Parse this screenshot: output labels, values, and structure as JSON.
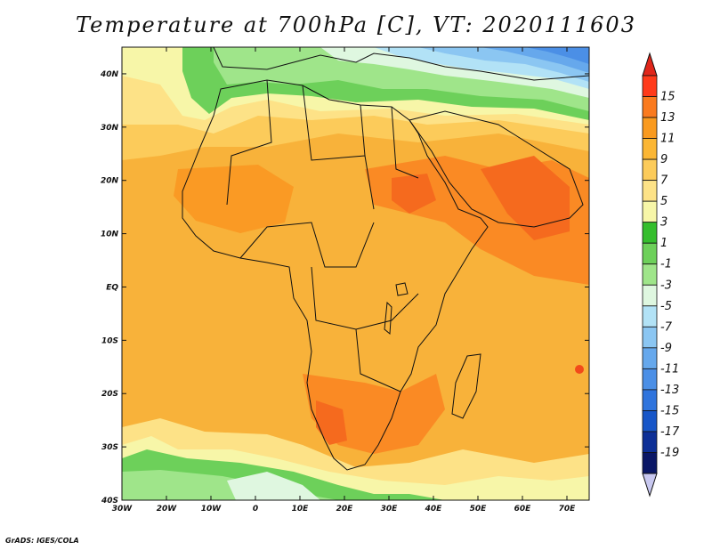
{
  "title": "Temperature at 700hPa [C], VT: 2020111603",
  "credit": "GrADS: IGES/COLA",
  "map": {
    "lon_range": [
      -30,
      75
    ],
    "lat_range": [
      -40,
      45
    ],
    "lon_ticks": [
      {
        "value": -30,
        "label": "30W"
      },
      {
        "value": -20,
        "label": "20W"
      },
      {
        "value": -10,
        "label": "10W"
      },
      {
        "value": 0,
        "label": "0"
      },
      {
        "value": 10,
        "label": "10E"
      },
      {
        "value": 20,
        "label": "20E"
      },
      {
        "value": 30,
        "label": "30E"
      },
      {
        "value": 40,
        "label": "40E"
      },
      {
        "value": 50,
        "label": "50E"
      },
      {
        "value": 60,
        "label": "60E"
      },
      {
        "value": 70,
        "label": "70E"
      }
    ],
    "lat_ticks": [
      {
        "value": 40,
        "label": "40N"
      },
      {
        "value": 30,
        "label": "30N"
      },
      {
        "value": 20,
        "label": "20N"
      },
      {
        "value": 10,
        "label": "10N"
      },
      {
        "value": 0,
        "label": "EQ"
      },
      {
        "value": -10,
        "label": "10S"
      },
      {
        "value": -20,
        "label": "20S"
      },
      {
        "value": -30,
        "label": "30S"
      },
      {
        "value": -40,
        "label": "40S"
      }
    ]
  },
  "colorbar": {
    "labels": [
      "15",
      "13",
      "11",
      "9",
      "7",
      "5",
      "3",
      "1",
      "-1",
      "-3",
      "-5",
      "-7",
      "-9",
      "-11",
      "-13",
      "-15",
      "-17",
      "-19"
    ],
    "colors": [
      "#ff3a1a",
      "#fa7a1e",
      "#f99a1f",
      "#fbb634",
      "#fccb5a",
      "#fde287",
      "#f7f6a8",
      "#35be2d",
      "#6dd05a",
      "#9fe58a",
      "#dff7e0",
      "#b2e2f6",
      "#8bc6f2",
      "#66a8ec",
      "#4b8fe6",
      "#2f74dd",
      "#1756c8",
      "#0d2f96",
      "#0a1766"
    ],
    "top_cap_color": "#e0261a",
    "bottom_cap_color": "#c8c8f0"
  }
}
